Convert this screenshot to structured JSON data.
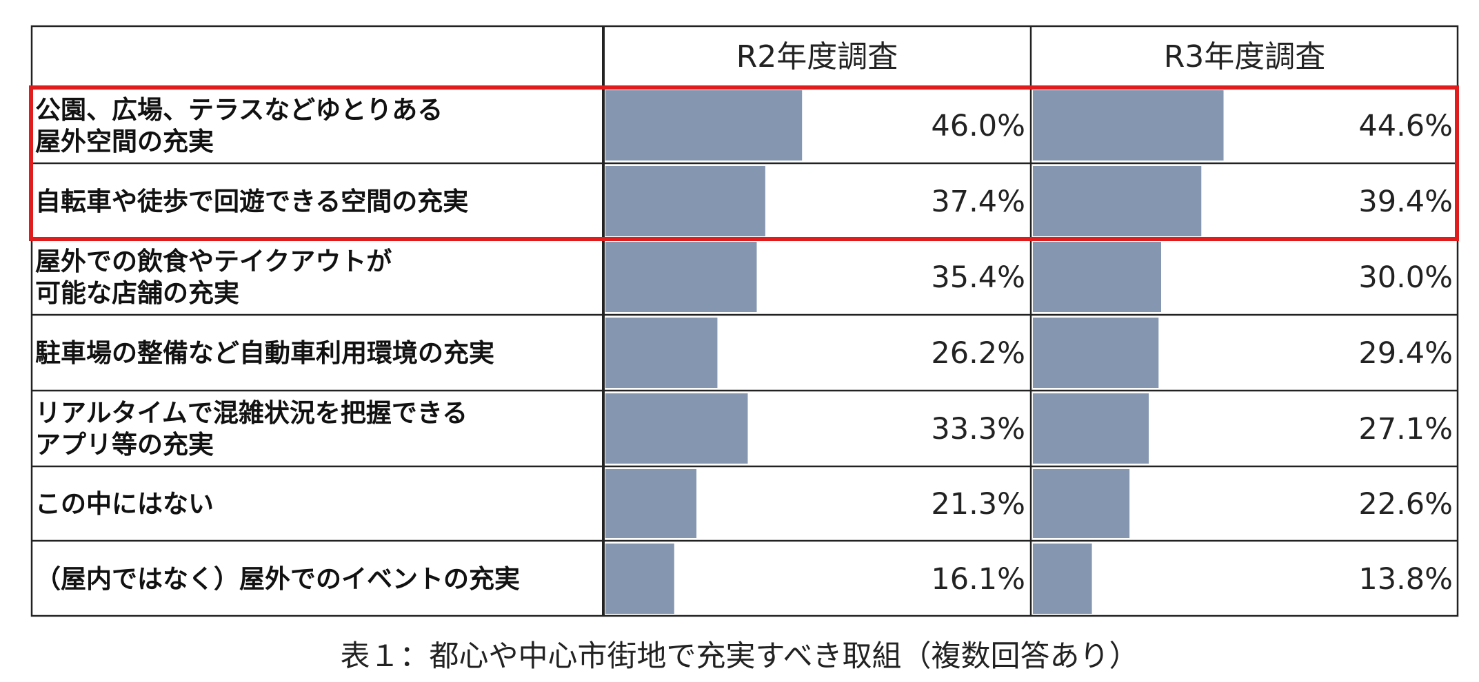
{
  "chart_data": {
    "type": "table",
    "columns": [
      "R2年度調査",
      "R3年度調査"
    ],
    "categories": [
      [
        "公園、広場、テラスなどゆとりある",
        "屋外空間の充実"
      ],
      [
        "自転車や徒歩で回遊できる空間の充実"
      ],
      [
        "屋外での飲食やテイクアウトが",
        "可能な店舗の充実"
      ],
      [
        "駐車場の整備など自動車利用環境の充実"
      ],
      [
        "リアルタイムで混雑状況を把握できる",
        "アプリ等の充実"
      ],
      [
        "この中にはない"
      ],
      [
        "（屋内ではなく）屋外でのイベントの充実"
      ]
    ],
    "series": [
      {
        "name": "R2年度調査",
        "values": [
          46.0,
          37.4,
          35.4,
          26.2,
          33.3,
          21.3,
          16.1
        ]
      },
      {
        "name": "R3年度調査",
        "values": [
          44.6,
          39.4,
          30.0,
          29.4,
          27.1,
          22.6,
          13.8
        ]
      }
    ],
    "value_labels": [
      [
        "46.0%",
        "44.6%"
      ],
      [
        "37.4%",
        "39.4%"
      ],
      [
        "35.4%",
        "30.0%"
      ],
      [
        "26.2%",
        "29.4%"
      ],
      [
        "33.3%",
        "27.1%"
      ],
      [
        "21.3%",
        "22.6%"
      ],
      [
        "16.1%",
        "13.8%"
      ]
    ],
    "highlighted_rows": [
      0,
      1
    ],
    "caption": "表１：都心や中心市街地で充実すべき取組（複数回答あり）"
  },
  "colors": {
    "bar": "#8597b0",
    "highlight": "#e01c1c",
    "grid": "#222222",
    "text": "#111111"
  }
}
